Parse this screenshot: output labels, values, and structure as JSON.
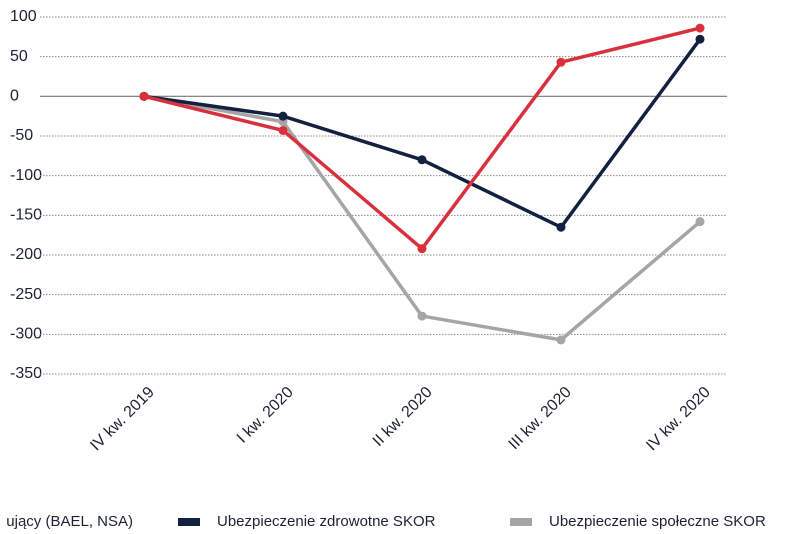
{
  "chart_data": {
    "type": "line",
    "categories": [
      "IV kw. 2019",
      "I kw. 2020",
      "II kw. 2020",
      "III kw. 2020",
      "IV kw. 2020"
    ],
    "series": [
      {
        "name": "ujący (BAEL, NSA)",
        "color": "#d9303e",
        "values": [
          0,
          -43,
          -192,
          43,
          86
        ]
      },
      {
        "name": "Ubezpieczenie zdrowotne SKOR",
        "color": "#13203f",
        "values": [
          0,
          -25,
          -80,
          -165,
          72
        ]
      },
      {
        "name": "Ubezpieczenie społeczne SKOR",
        "color": "#a5a5a5",
        "values": [
          0,
          -32,
          -277,
          -307,
          -158
        ]
      }
    ],
    "ylim": [
      -350,
      100
    ],
    "yticks": [
      100,
      50,
      0,
      -50,
      -100,
      -150,
      -200,
      -250,
      -300,
      -350
    ],
    "grid": true
  }
}
